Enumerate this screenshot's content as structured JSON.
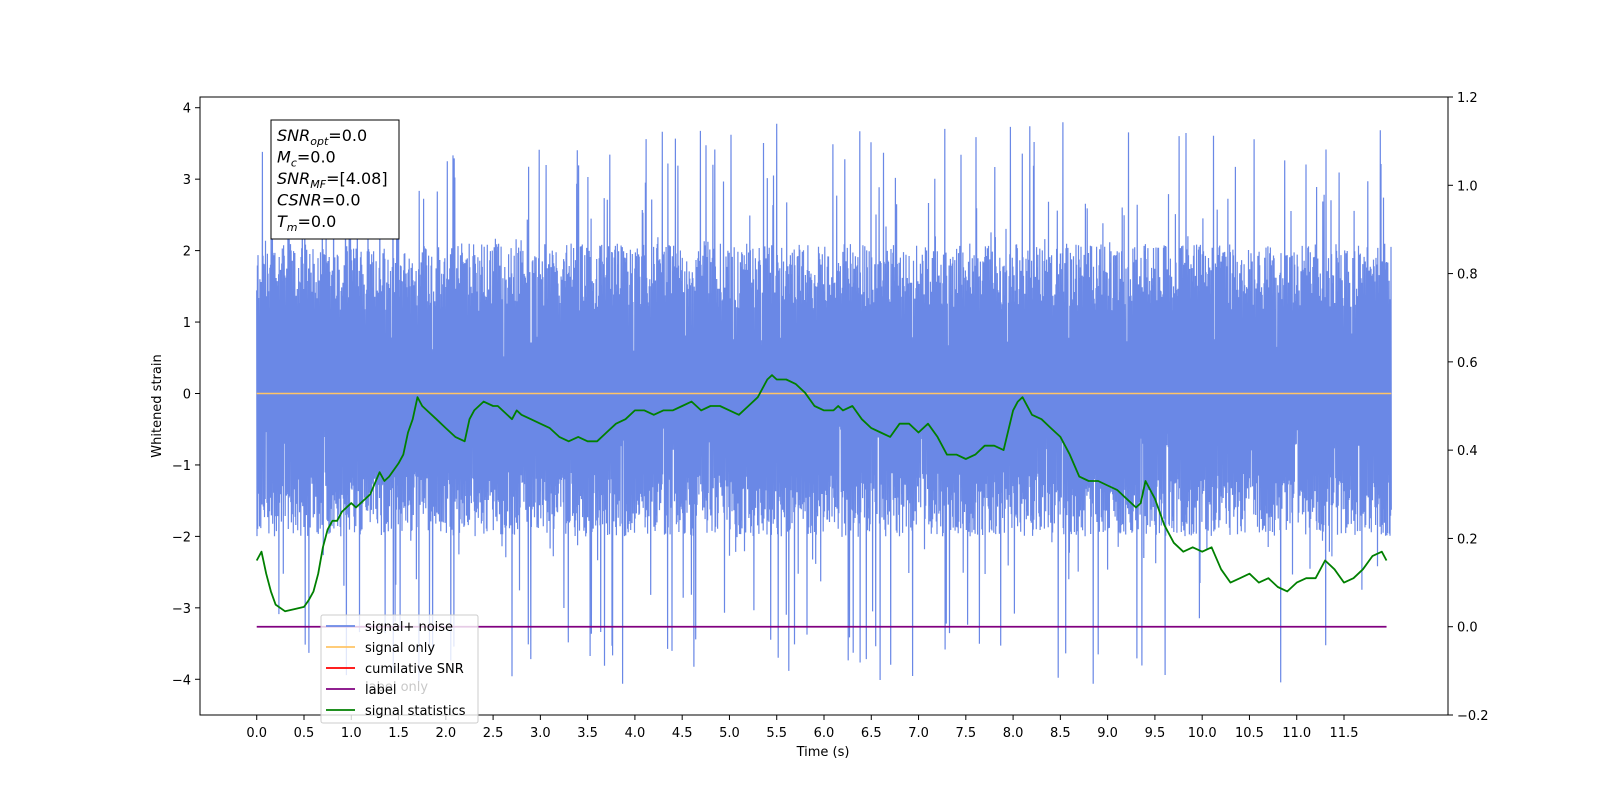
{
  "chart_data": {
    "type": "line",
    "xlabel": "Time (s)",
    "ylabel": "Whitened strain",
    "xlim": [
      -0.6,
      12.6
    ],
    "ylim_left": [
      -4.5,
      4.15
    ],
    "ylim_right": [
      -0.2,
      1.2
    ],
    "x_ticks": [
      0.0,
      0.5,
      1.0,
      1.5,
      2.0,
      2.5,
      3.0,
      3.5,
      4.0,
      4.5,
      5.0,
      5.5,
      6.0,
      6.5,
      7.0,
      7.5,
      8.0,
      8.5,
      9.0,
      9.5,
      10.0,
      10.5,
      11.0,
      11.5
    ],
    "x_tick_labels": [
      "0.0",
      "0.5",
      "1.0",
      "1.5",
      "2.0",
      "2.5",
      "3.0",
      "3.5",
      "4.0",
      "4.5",
      "5.0",
      "5.5",
      "6.0",
      "6.5",
      "7.0",
      "7.5",
      "8.0",
      "8.5",
      "9.0",
      "9.5",
      "10.0",
      "10.5",
      "11.0",
      "11.5"
    ],
    "y_left_ticks": [
      4,
      3,
      2,
      1,
      0,
      -1,
      -2,
      -3,
      -4
    ],
    "y_left_tick_labels": [
      "4",
      "3",
      "2",
      "1",
      "0",
      "−1",
      "−2",
      "−3",
      "−4"
    ],
    "y_right_ticks": [
      1.2,
      1.0,
      0.8,
      0.6,
      0.4,
      0.2,
      0.0,
      -0.2
    ],
    "y_right_tick_labels": [
      "1.2",
      "1.0",
      "0.8",
      "0.6",
      "0.4",
      "0.2",
      "0.0",
      "−0.2"
    ],
    "grid": false,
    "legend_position": "lower-left",
    "legend": [
      {
        "label": "signal+ noise",
        "color": "#6a88e6"
      },
      {
        "label": "signal only",
        "color": "#ffc466"
      },
      {
        "label": "cumilative SNR",
        "color": "#ff0000"
      },
      {
        "label": "label",
        "color": "#800080"
      },
      {
        "label": "signal statistics",
        "color": "#008000"
      }
    ],
    "legend_hidden_label": "label only",
    "stats_box": {
      "lines": [
        {
          "symbol": "SNR",
          "sub": "opt",
          "value": "=0.0"
        },
        {
          "symbol": "M",
          "sub": "c",
          "value": "=0.0"
        },
        {
          "symbol": "SNR",
          "sub": "MF",
          "value": "=[4.08]"
        },
        {
          "symbol": "CSNR",
          "sub": "",
          "value": "=0.0"
        },
        {
          "symbol": "T",
          "sub": "m",
          "value": "=0.0"
        }
      ]
    },
    "series": [
      {
        "name": "signal+ noise",
        "axis": "left",
        "color": "#6a88e6",
        "x_start": 0.0,
        "x_end": 12.0,
        "approx_range": [
          -4.1,
          3.8
        ],
        "typical_max": 2.1,
        "typical_min": -2.0
      },
      {
        "name": "signal only",
        "axis": "left",
        "color": "#ffc466",
        "x": [
          0.0,
          12.0
        ],
        "y": [
          0.0,
          0.0
        ]
      },
      {
        "name": "label",
        "axis": "right",
        "color": "#800080",
        "x": [
          0.0,
          11.95
        ],
        "y": [
          0.0,
          0.0
        ]
      },
      {
        "name": "signal statistics",
        "axis": "right",
        "color": "#008000",
        "x": [
          0.0,
          0.05,
          0.1,
          0.15,
          0.2,
          0.3,
          0.4,
          0.5,
          0.55,
          0.6,
          0.65,
          0.7,
          0.75,
          0.8,
          0.85,
          0.9,
          0.95,
          1.0,
          1.05,
          1.1,
          1.2,
          1.3,
          1.35,
          1.4,
          1.5,
          1.55,
          1.6,
          1.65,
          1.7,
          1.75,
          1.8,
          1.9,
          2.0,
          2.1,
          2.2,
          2.25,
          2.3,
          2.4,
          2.5,
          2.55,
          2.6,
          2.7,
          2.75,
          2.8,
          2.9,
          3.0,
          3.1,
          3.2,
          3.3,
          3.4,
          3.5,
          3.6,
          3.7,
          3.8,
          3.9,
          4.0,
          4.1,
          4.2,
          4.3,
          4.4,
          4.5,
          4.6,
          4.7,
          4.8,
          4.9,
          5.0,
          5.1,
          5.2,
          5.3,
          5.4,
          5.45,
          5.5,
          5.6,
          5.7,
          5.8,
          5.9,
          6.0,
          6.1,
          6.15,
          6.2,
          6.3,
          6.4,
          6.5,
          6.6,
          6.7,
          6.8,
          6.9,
          7.0,
          7.1,
          7.2,
          7.3,
          7.4,
          7.5,
          7.6,
          7.7,
          7.8,
          7.9,
          8.0,
          8.05,
          8.1,
          8.2,
          8.3,
          8.4,
          8.5,
          8.6,
          8.7,
          8.8,
          8.9,
          9.0,
          9.1,
          9.2,
          9.3,
          9.35,
          9.4,
          9.5,
          9.6,
          9.7,
          9.8,
          9.9,
          10.0,
          10.1,
          10.2,
          10.3,
          10.4,
          10.5,
          10.6,
          10.7,
          10.8,
          10.9,
          11.0,
          11.1,
          11.2,
          11.3,
          11.4,
          11.5,
          11.6,
          11.7,
          11.8,
          11.9,
          11.95
        ],
        "y": [
          0.15,
          0.17,
          0.12,
          0.08,
          0.05,
          0.035,
          0.04,
          0.045,
          0.06,
          0.08,
          0.12,
          0.18,
          0.22,
          0.24,
          0.24,
          0.26,
          0.27,
          0.28,
          0.27,
          0.28,
          0.3,
          0.35,
          0.33,
          0.34,
          0.37,
          0.39,
          0.44,
          0.47,
          0.52,
          0.5,
          0.49,
          0.47,
          0.45,
          0.43,
          0.42,
          0.47,
          0.49,
          0.51,
          0.5,
          0.5,
          0.49,
          0.47,
          0.49,
          0.48,
          0.47,
          0.46,
          0.45,
          0.43,
          0.42,
          0.43,
          0.42,
          0.42,
          0.44,
          0.46,
          0.47,
          0.49,
          0.49,
          0.48,
          0.49,
          0.49,
          0.5,
          0.51,
          0.49,
          0.5,
          0.5,
          0.49,
          0.48,
          0.5,
          0.52,
          0.56,
          0.57,
          0.56,
          0.56,
          0.55,
          0.53,
          0.5,
          0.49,
          0.49,
          0.5,
          0.49,
          0.5,
          0.47,
          0.45,
          0.44,
          0.43,
          0.46,
          0.46,
          0.44,
          0.46,
          0.43,
          0.39,
          0.39,
          0.38,
          0.39,
          0.41,
          0.41,
          0.4,
          0.49,
          0.51,
          0.52,
          0.48,
          0.47,
          0.45,
          0.43,
          0.39,
          0.34,
          0.33,
          0.33,
          0.32,
          0.31,
          0.29,
          0.27,
          0.28,
          0.33,
          0.29,
          0.23,
          0.19,
          0.17,
          0.18,
          0.17,
          0.18,
          0.13,
          0.1,
          0.11,
          0.12,
          0.1,
          0.11,
          0.09,
          0.08,
          0.1,
          0.11,
          0.11,
          0.15,
          0.13,
          0.1,
          0.11,
          0.13,
          0.16,
          0.17,
          0.15
        ]
      }
    ]
  }
}
